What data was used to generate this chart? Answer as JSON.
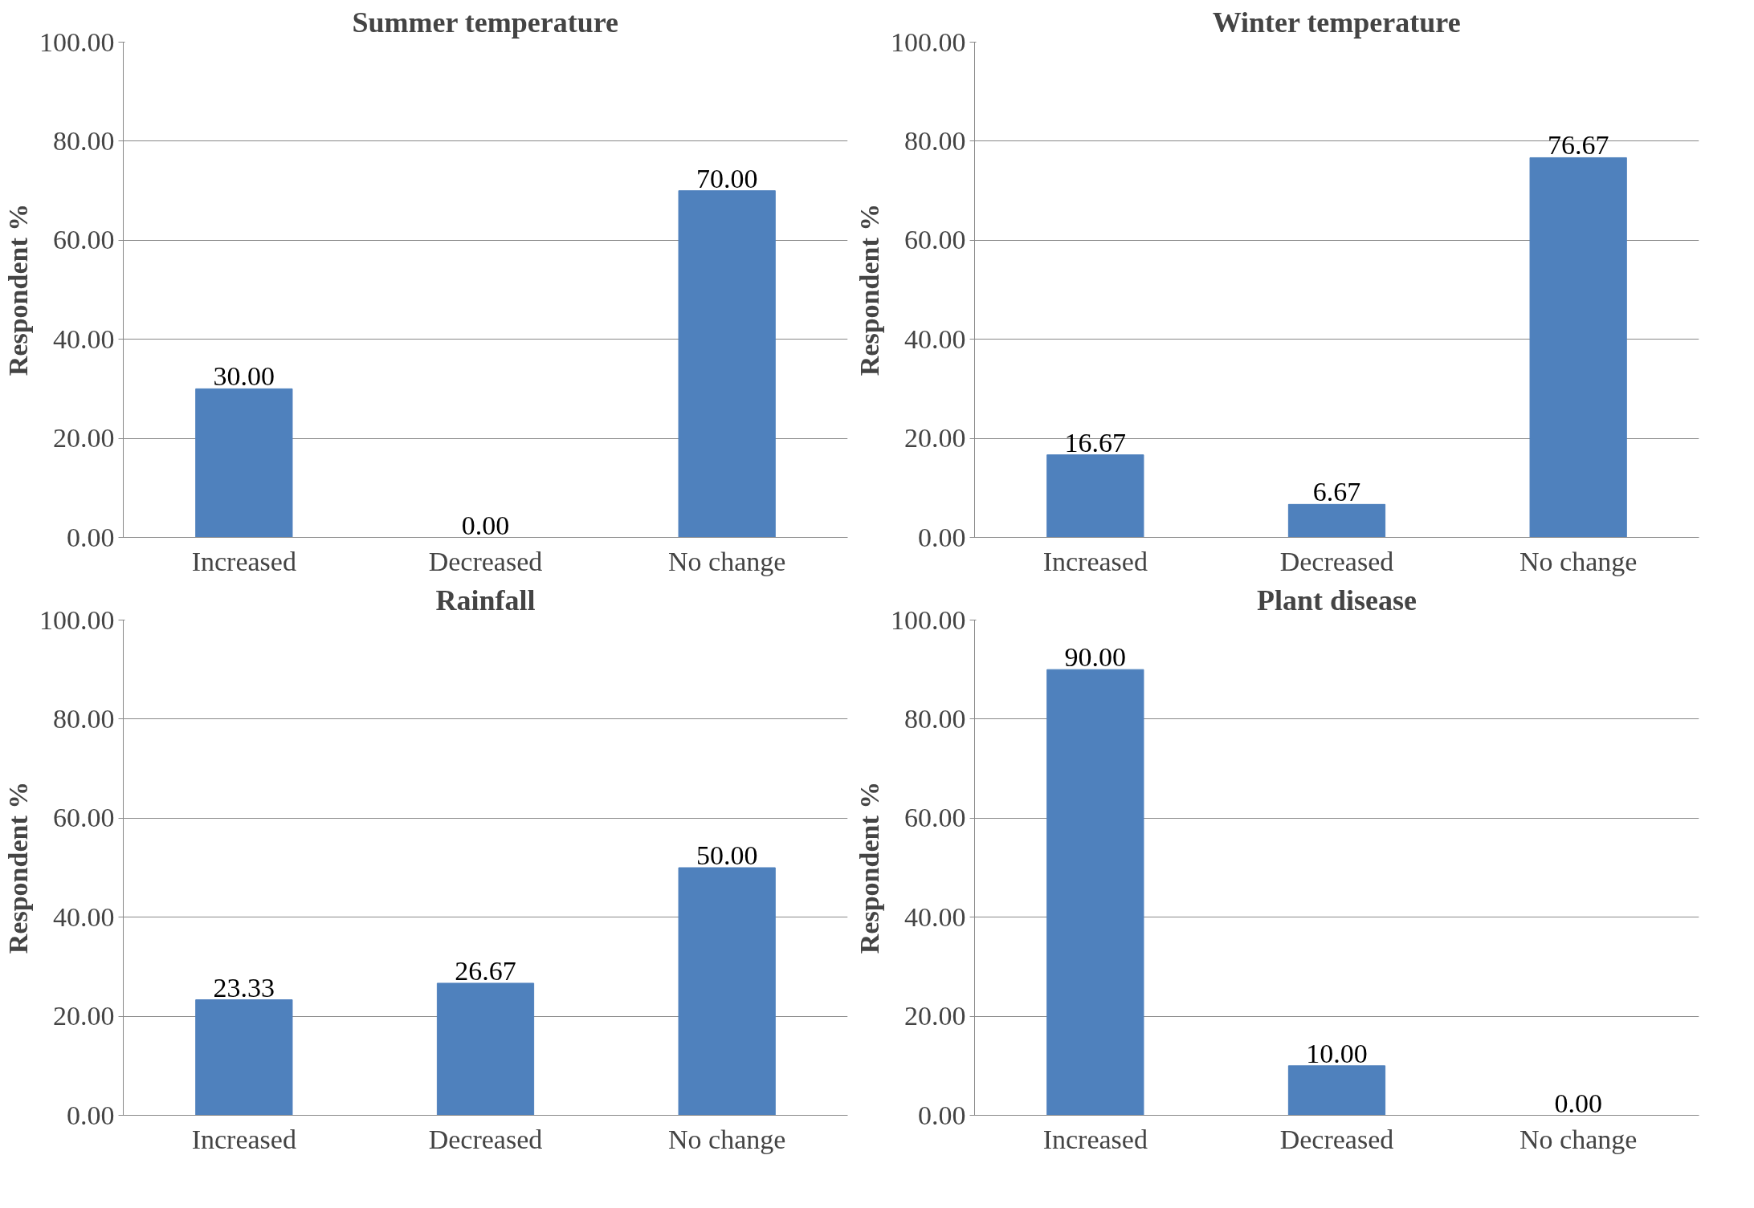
{
  "chart_data": [
    {
      "type": "bar",
      "title": "Summer temperature",
      "ylabel": "Respondent %",
      "categories": [
        "Increased",
        "Decreased",
        "No change"
      ],
      "values": [
        30,
        0,
        70
      ],
      "color": "#4f81bd",
      "value_labels": [
        "30.00",
        "0.00",
        "70.00"
      ],
      "ylim": [
        0,
        100
      ],
      "yticks": [
        {
          "value": 0,
          "label": "0.00"
        },
        {
          "value": 20,
          "label": "20.00"
        },
        {
          "value": 40,
          "label": "40.00"
        },
        {
          "value": 60,
          "label": "60.00"
        },
        {
          "value": 80,
          "label": "80.00"
        },
        {
          "value": 100,
          "label": "100.00"
        }
      ],
      "grid": "y"
    },
    {
      "type": "bar",
      "title": "Winter temperature",
      "ylabel": "Respondent %",
      "categories": [
        "Increased",
        "Decreased",
        "No change"
      ],
      "values": [
        16.67,
        6.67,
        76.67
      ],
      "color": "#4f81bd",
      "value_labels": [
        "16.67",
        "6.67",
        "76.67"
      ],
      "ylim": [
        0,
        100
      ],
      "yticks": [
        {
          "value": 0,
          "label": "0.00"
        },
        {
          "value": 20,
          "label": "20.00"
        },
        {
          "value": 40,
          "label": "40.00"
        },
        {
          "value": 60,
          "label": "60.00"
        },
        {
          "value": 80,
          "label": "80.00"
        },
        {
          "value": 100,
          "label": "100.00"
        }
      ],
      "grid": "y"
    },
    {
      "type": "bar",
      "title": "Rainfall",
      "ylabel": "Respondent %",
      "categories": [
        "Increased",
        "Decreased",
        "No change"
      ],
      "values": [
        23.33,
        26.67,
        50
      ],
      "color": "#4f81bd",
      "value_labels": [
        "23.33",
        "26.67",
        "50.00"
      ],
      "ylim": [
        0,
        100
      ],
      "yticks": [
        {
          "value": 0,
          "label": "0.00"
        },
        {
          "value": 20,
          "label": "20.00"
        },
        {
          "value": 40,
          "label": "40.00"
        },
        {
          "value": 60,
          "label": "60.00"
        },
        {
          "value": 80,
          "label": "80.00"
        },
        {
          "value": 100,
          "label": "100.00"
        }
      ],
      "grid": "y"
    },
    {
      "type": "bar",
      "title": "Plant disease",
      "ylabel": "Respondent %",
      "categories": [
        "Increased",
        "Decreased",
        "No change"
      ],
      "values": [
        90,
        10,
        0
      ],
      "color": "#4f81bd",
      "value_labels": [
        "90.00",
        "10.00",
        "0.00"
      ],
      "ylim": [
        0,
        100
      ],
      "yticks": [
        {
          "value": 0,
          "label": "0.00"
        },
        {
          "value": 20,
          "label": "20.00"
        },
        {
          "value": 40,
          "label": "40.00"
        },
        {
          "value": 60,
          "label": "60.00"
        },
        {
          "value": 80,
          "label": "80.00"
        },
        {
          "value": 100,
          "label": "100.00"
        }
      ],
      "grid": "y"
    }
  ]
}
